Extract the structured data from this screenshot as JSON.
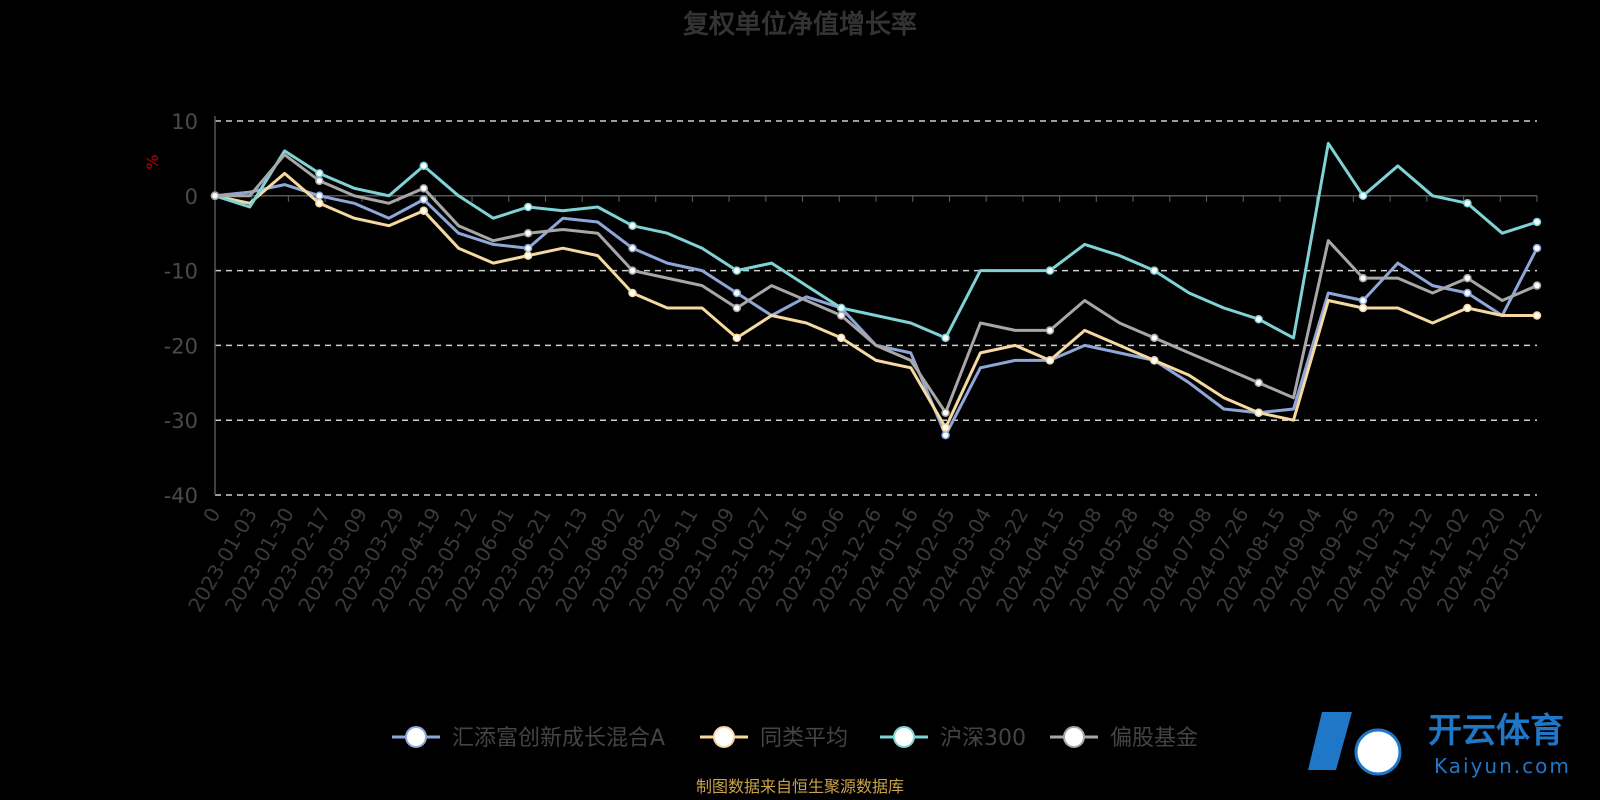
{
  "chart_data": {
    "type": "line",
    "title": "复权单位净值增长率",
    "ylabel": "%",
    "ylim": [
      -40,
      10
    ],
    "yticks": [
      10,
      0,
      -10,
      -20,
      -30,
      -40
    ],
    "grid": "horizontal-dashed",
    "legend_position": "bottom-center",
    "x_tick_labels": [
      "0",
      "2023-01-03",
      "2023-01-30",
      "2023-02-17",
      "2023-03-09",
      "2023-03-29",
      "2023-04-19",
      "2023-05-12",
      "2023-06-01",
      "2023-06-21",
      "2023-07-13",
      "2023-08-02",
      "2023-08-22",
      "2023-09-11",
      "2023-10-09",
      "2023-10-27",
      "2023-11-16",
      "2023-12-06",
      "2023-12-26",
      "2024-01-16",
      "2024-02-05",
      "2024-03-04",
      "2024-03-22",
      "2024-04-15",
      "2024-05-08",
      "2024-05-28",
      "2024-06-18",
      "2024-07-08",
      "2024-07-26",
      "2024-08-15",
      "2024-09-04",
      "2024-09-26",
      "2024-10-23",
      "2024-11-12",
      "2024-12-02",
      "2024-12-20",
      "2025-01-22"
    ],
    "series": [
      {
        "name": "汇添富创新成长混合A",
        "color": "#8fa7d8",
        "values": [
          0,
          0.5,
          1.5,
          0,
          -1,
          -3,
          -0.5,
          -5,
          -6.5,
          -7,
          -3,
          -3.5,
          -7,
          -9,
          -10,
          -13,
          -16,
          -13.5,
          -15,
          -20,
          -21,
          -32,
          -23,
          -22,
          -22,
          -20,
          -21,
          -22,
          -25,
          -28.5,
          -29,
          -28.5,
          -13,
          -14,
          -9,
          -12,
          -13,
          -16,
          -7
        ]
      },
      {
        "name": "同类平均",
        "color": "#f6d9a0",
        "values": [
          0,
          -1,
          3,
          -1,
          -3,
          -4,
          -2,
          -7,
          -9,
          -8,
          -7,
          -8,
          -13,
          -15,
          -15,
          -19,
          -16,
          -17,
          -19,
          -22,
          -23,
          -31,
          -21,
          -20,
          -22,
          -18,
          -20,
          -22,
          -24,
          -27,
          -29,
          -30,
          -14,
          -15,
          -15,
          -17,
          -15,
          -16,
          -16
        ]
      },
      {
        "name": "沪深300",
        "color": "#7fd3d6",
        "values": [
          0,
          -1.5,
          6,
          3,
          1,
          0,
          4,
          0,
          -3,
          -1.5,
          -2,
          -1.5,
          -4,
          -5,
          -7,
          -10,
          -9,
          -12,
          -15,
          -16,
          -17,
          -19,
          -10,
          -10,
          -10,
          -6.5,
          -8,
          -10,
          -13,
          -15,
          -16.5,
          -19,
          7,
          0,
          4,
          0,
          -1,
          -5,
          -3.5
        ]
      },
      {
        "name": "偏股基金",
        "color": "#a7a7a7",
        "values": [
          0,
          0,
          5.5,
          2,
          0,
          -1,
          1,
          -4,
          -6,
          -5,
          -4.5,
          -5,
          -10,
          -11,
          -12,
          -15,
          -12,
          -14,
          -16,
          -20,
          -22,
          -29,
          -17,
          -18,
          -18,
          -14,
          -17,
          -19,
          -21,
          -23,
          -25,
          -27,
          -6,
          -11,
          -11,
          -13,
          -11,
          -14,
          -12
        ]
      }
    ]
  },
  "source_note": "制图数据来自恒生聚源数据库",
  "watermark": {
    "brand": "开云体育",
    "url": "Kaiyun.com"
  }
}
